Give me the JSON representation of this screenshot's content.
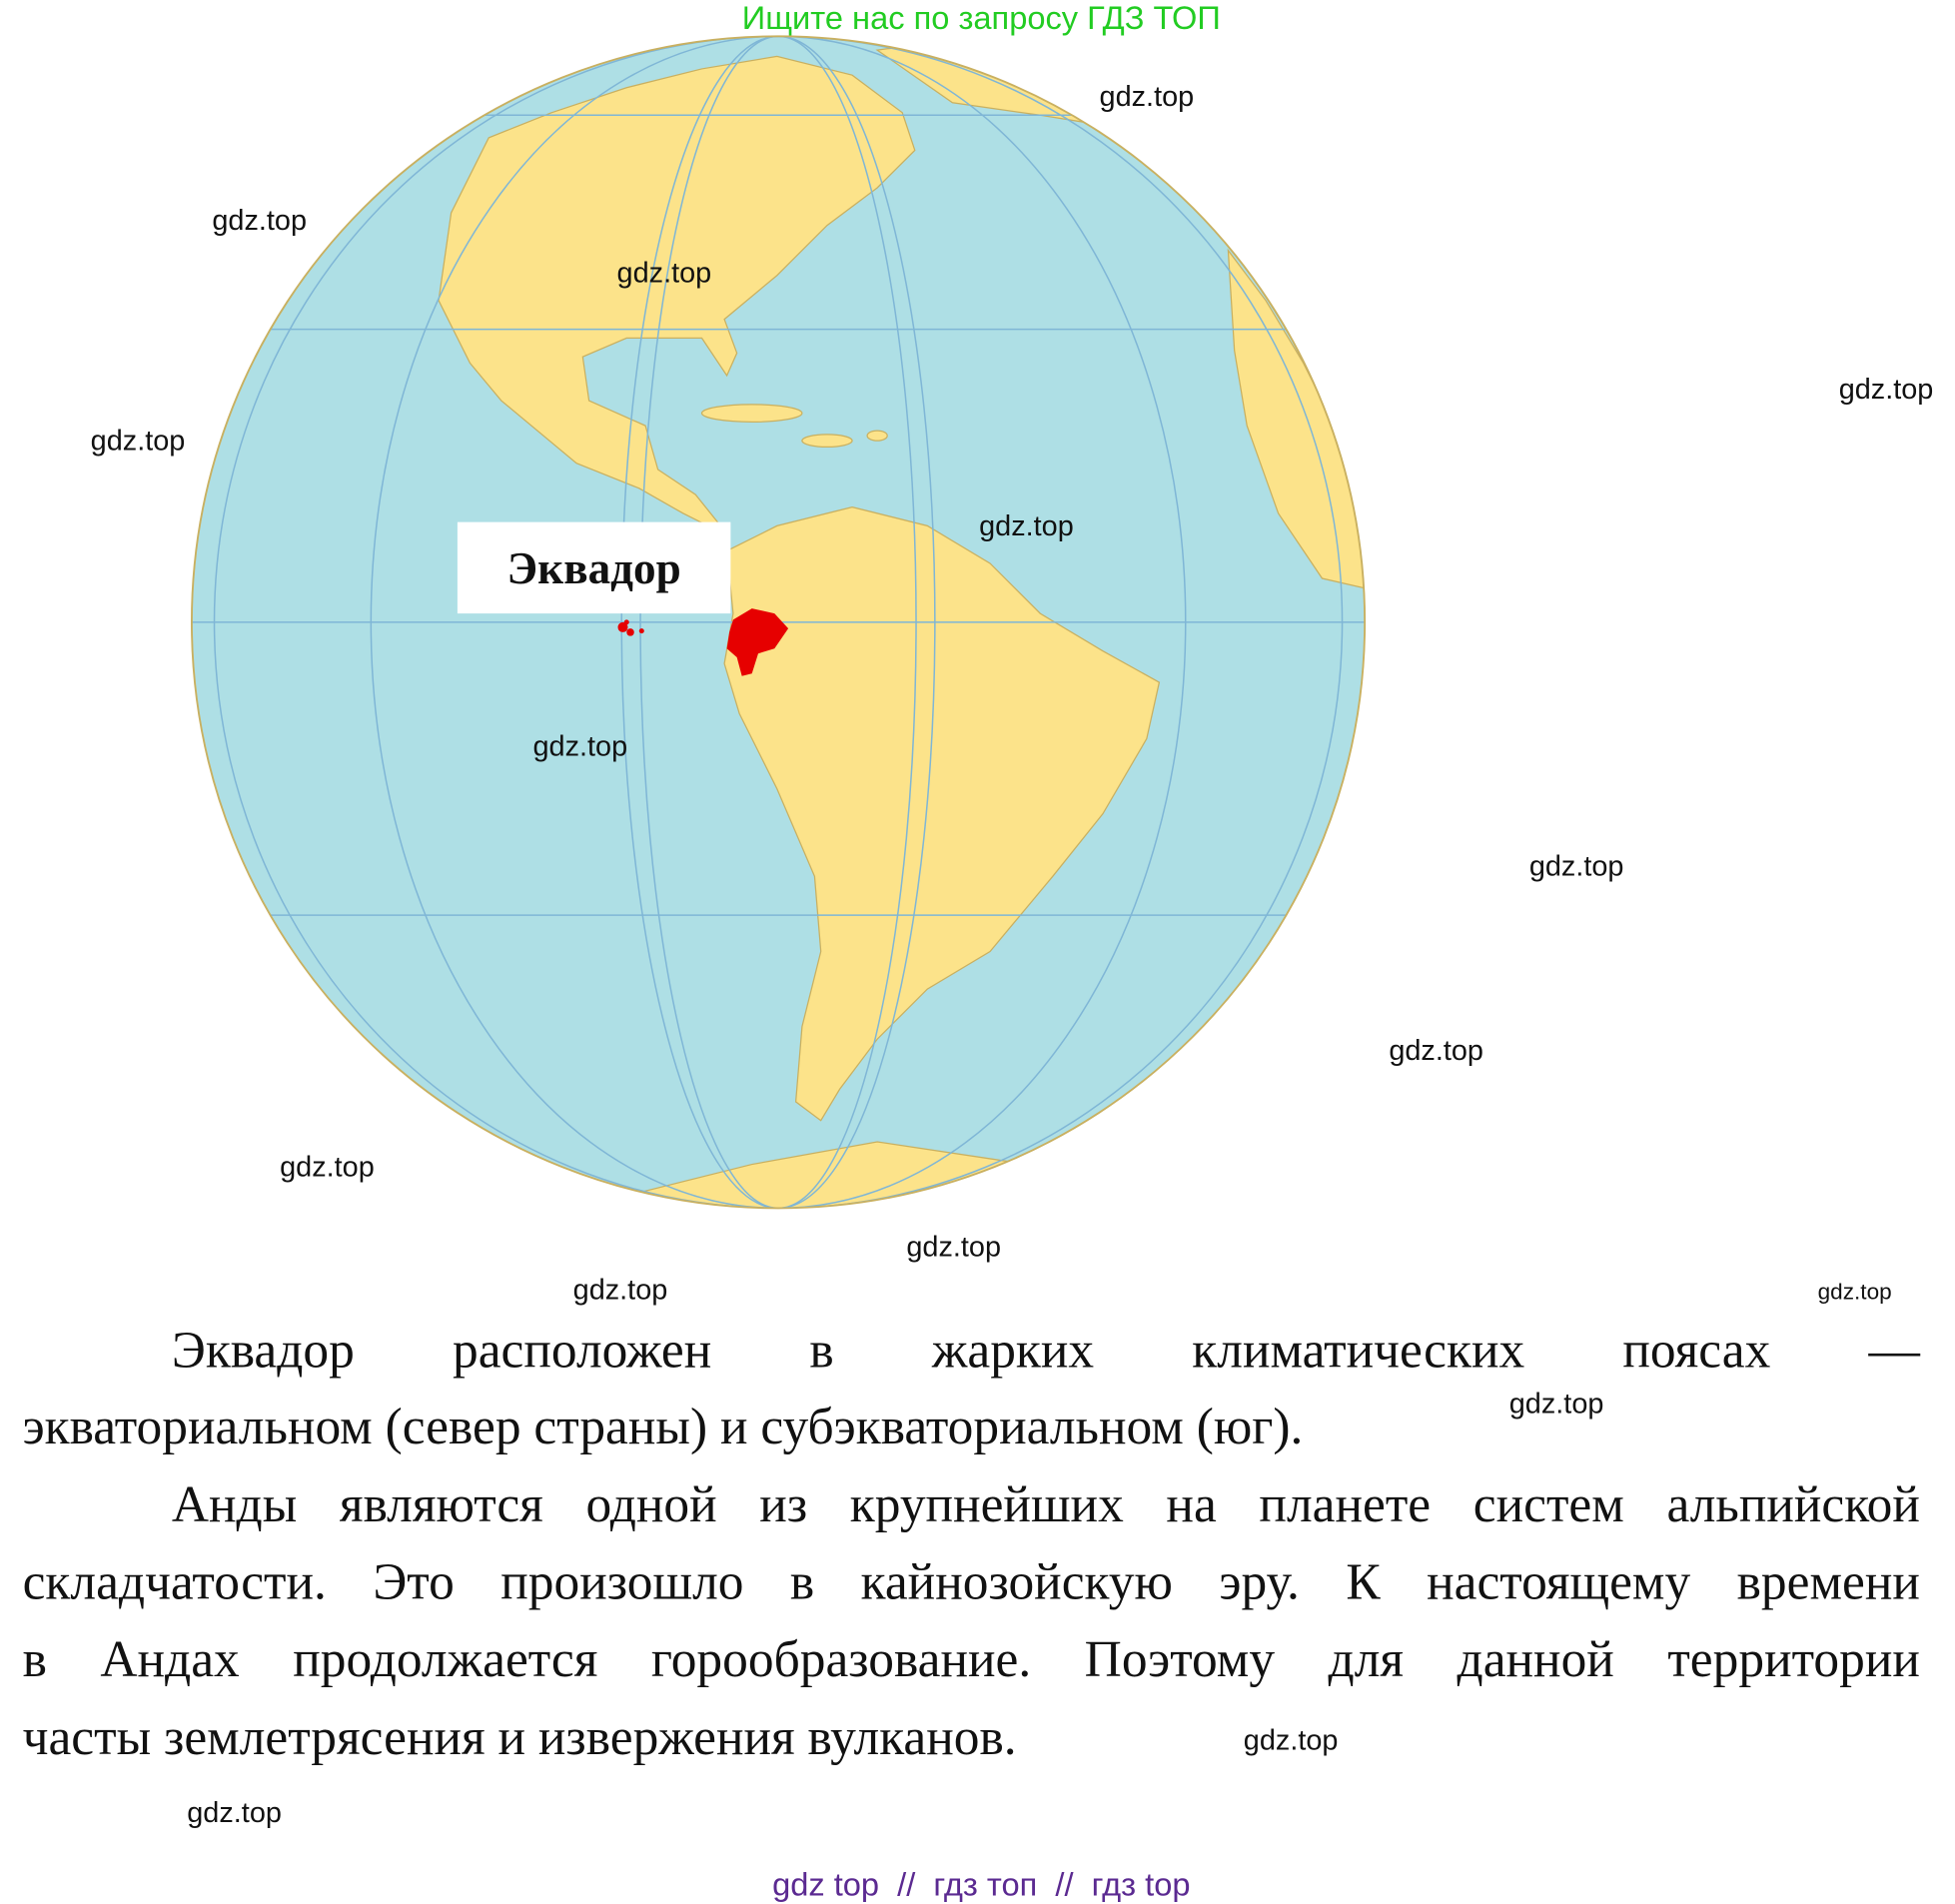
{
  "banner": "Ищите нас по запросу ГДЗ ТОП",
  "map": {
    "country_label": "Эквадор",
    "colors": {
      "ocean": "#aedfe5",
      "land": "#fce38a",
      "highlight": "#e60000",
      "grid": "#7fb6d6"
    }
  },
  "text": {
    "lines": [
      "Эквадор расположен в жарких климатических поясах —",
      "экваториальном (север страны) и субэкваториальном (юг).",
      "Анды являются одной из крупнейших на планете систем альпийской",
      "складчатости. Это произошло в кайнозойскую эру. К настоящему времени",
      "в Андах продолжается горообразование. Поэтому для данной территории",
      "часты землетрясения и извержения вулканов."
    ]
  },
  "watermark": "gdz.top",
  "footer": "gdz top  //  гдз топ  //  гдз top"
}
